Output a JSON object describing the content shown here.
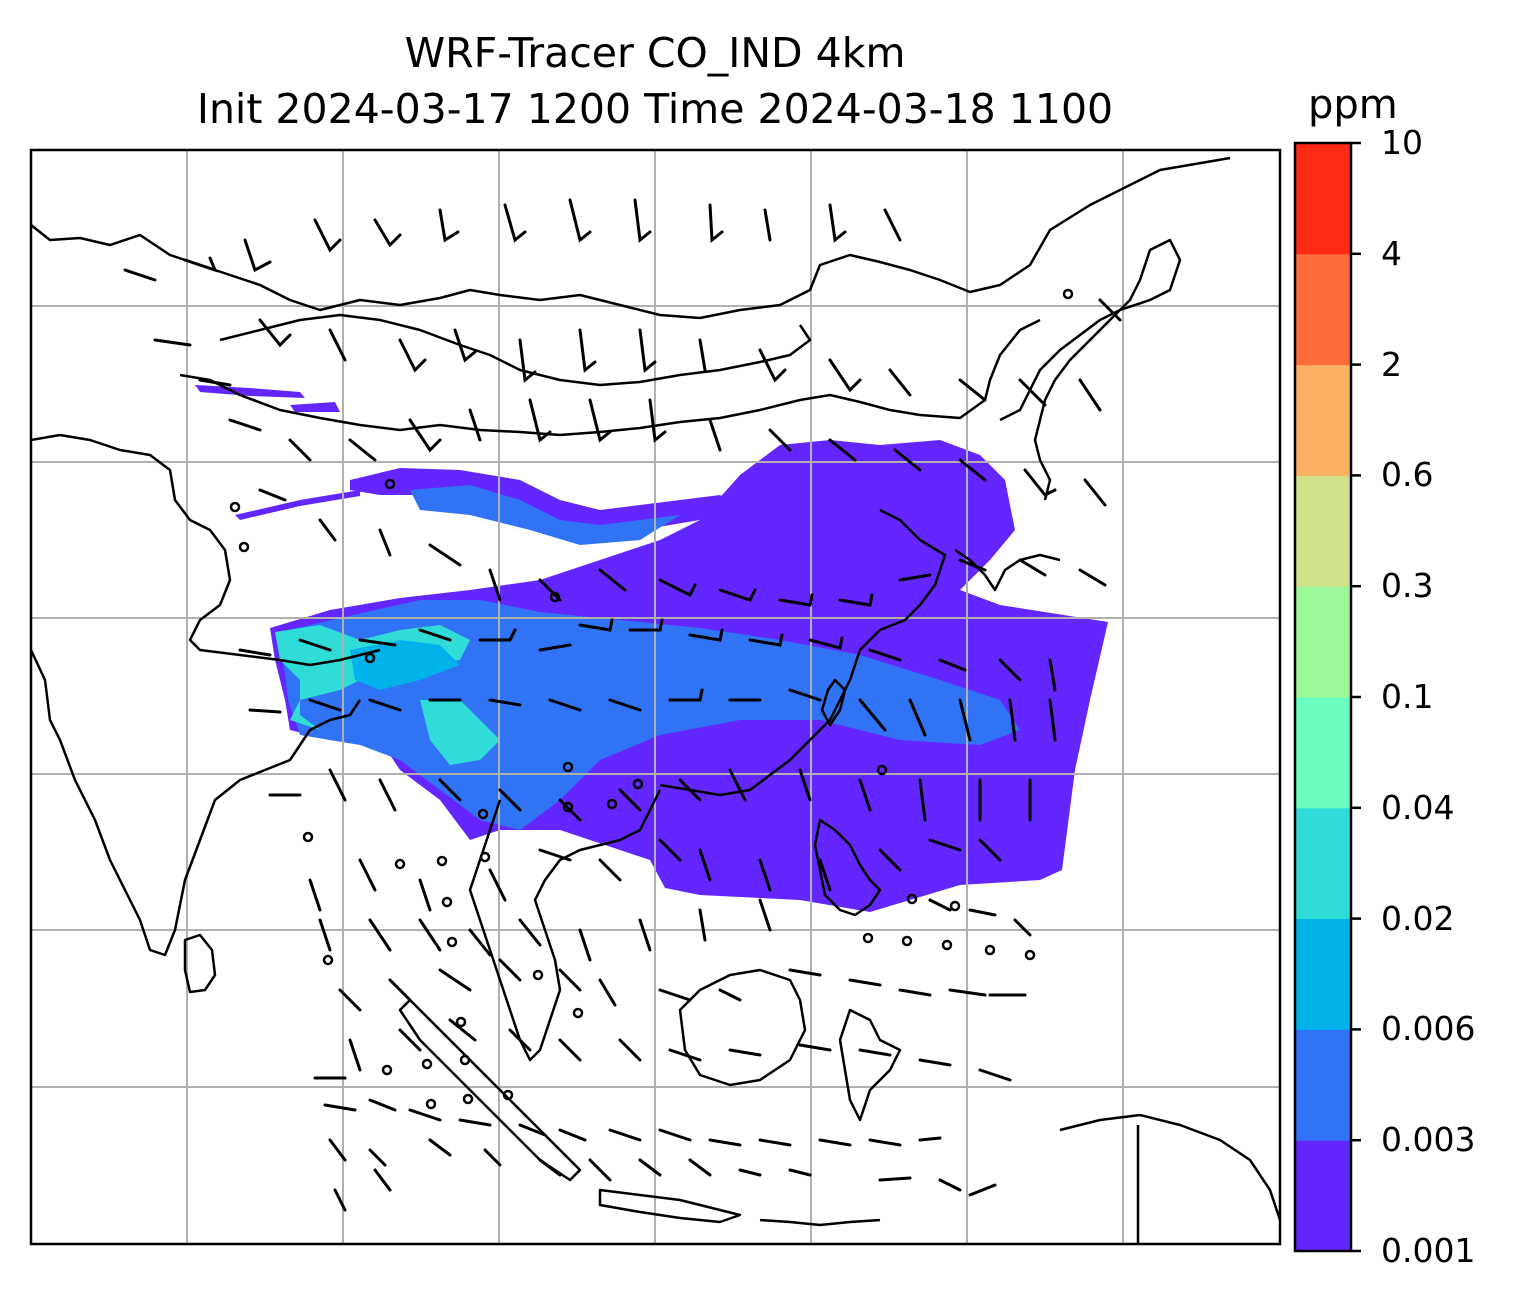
{
  "title_line1": "WRF-Tracer CO_IND 4km",
  "title_line2": "Init 2024-03-17 1200 Time 2024-03-18 1100",
  "colorbar": {
    "unit": "ppm",
    "levels": [
      "0.001",
      "0.003",
      "0.006",
      "0.02",
      "0.04",
      "0.1",
      "0.3",
      "0.6",
      "2",
      "4",
      "10"
    ],
    "colors": [
      "#6426fe",
      "#3173f5",
      "#00b2ea",
      "#30dcd8",
      "#6afdc0",
      "#9af898",
      "#cfe28a",
      "#fdb063",
      "#fd6d3c",
      "#ff2b17"
    ]
  },
  "map": {
    "grid": "on",
    "concentration_color": "#6426fe"
  }
}
